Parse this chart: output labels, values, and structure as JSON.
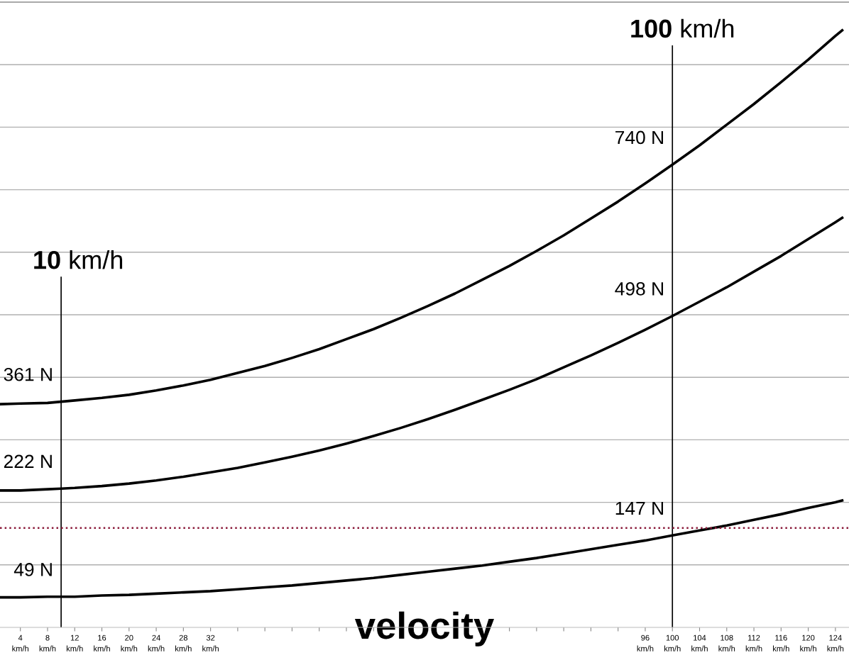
{
  "chart_data": {
    "type": "line",
    "xlabel": "velocity",
    "x": [
      1,
      4,
      8,
      10,
      12,
      16,
      20,
      24,
      28,
      32,
      36,
      40,
      44,
      48,
      52,
      56,
      60,
      64,
      68,
      72,
      76,
      80,
      84,
      88,
      92,
      96,
      100,
      104,
      108,
      112,
      116,
      120,
      124,
      125
    ],
    "series": [
      {
        "color": "#000000",
        "values": [
          357,
          358,
          359,
          361,
          363,
          367,
          372,
          379,
          387,
          396,
          407,
          418,
          431,
          445,
          461,
          477,
          495,
          514,
          534,
          556,
          578,
          602,
          627,
          654,
          681,
          710,
          740,
          771,
          804,
          837,
          872,
          908,
          946,
          955
        ],
        "value_labels": [
          null,
          null,
          null,
          "361 N",
          null,
          null,
          null,
          null,
          null,
          null,
          null,
          null,
          null,
          null,
          null,
          null,
          null,
          null,
          null,
          null,
          null,
          null,
          null,
          null,
          null,
          null,
          "740 N",
          null,
          null,
          null,
          null,
          null,
          null,
          null
        ]
      },
      {
        "color": "#000000",
        "values": [
          219,
          219,
          221,
          222,
          223,
          226,
          230,
          235,
          241,
          248,
          255,
          264,
          273,
          283,
          294,
          306,
          319,
          333,
          348,
          364,
          380,
          397,
          416,
          435,
          455,
          476,
          498,
          521,
          544,
          569,
          594,
          621,
          648,
          655
        ],
        "value_labels": [
          null,
          null,
          null,
          "222 N",
          null,
          null,
          null,
          null,
          null,
          null,
          null,
          null,
          null,
          null,
          null,
          null,
          null,
          null,
          null,
          null,
          null,
          null,
          null,
          null,
          null,
          null,
          "498 N",
          null,
          null,
          null,
          null,
          null,
          null,
          null
        ]
      },
      {
        "color": "#000000",
        "values": [
          48,
          48,
          49,
          49,
          49,
          51,
          52,
          54,
          56,
          58,
          61,
          64,
          67,
          71,
          75,
          79,
          84,
          89,
          94,
          99,
          105,
          111,
          118,
          125,
          132,
          139,
          147,
          155,
          163,
          172,
          181,
          191,
          200,
          203
        ],
        "value_labels": [
          null,
          null,
          null,
          "49 N",
          null,
          null,
          null,
          null,
          null,
          null,
          null,
          null,
          null,
          null,
          null,
          null,
          null,
          null,
          null,
          null,
          null,
          null,
          null,
          null,
          null,
          null,
          "147 N",
          null,
          null,
          null,
          null,
          null,
          null,
          null
        ]
      }
    ],
    "xlim": [
      1,
      126
    ],
    "xticks": [
      {
        "value": 4,
        "label": "4\nkm/h"
      },
      {
        "value": 8,
        "label": "8\nkm/h"
      },
      {
        "value": 12,
        "label": "12\nkm/h"
      },
      {
        "value": 16,
        "label": "16\nkm/h"
      },
      {
        "value": 20,
        "label": "20\nkm/h"
      },
      {
        "value": 24,
        "label": "24\nkm/h"
      },
      {
        "value": 28,
        "label": "28\nkm/h"
      },
      {
        "value": 32,
        "label": "32\nkm/h"
      },
      {
        "value": 36,
        "label": null
      },
      {
        "value": 40,
        "label": null
      },
      {
        "value": 44,
        "label": null
      },
      {
        "value": 48,
        "label": null
      },
      {
        "value": 52,
        "label": null
      },
      {
        "value": 56,
        "label": null
      },
      {
        "value": 60,
        "label": null
      },
      {
        "value": 64,
        "label": null
      },
      {
        "value": 68,
        "label": null
      },
      {
        "value": 72,
        "label": null
      },
      {
        "value": 76,
        "label": null
      },
      {
        "value": 80,
        "label": null
      },
      {
        "value": 84,
        "label": null
      },
      {
        "value": 88,
        "label": null
      },
      {
        "value": 92,
        "label": null
      },
      {
        "value": 96,
        "label": "96\nkm/h"
      },
      {
        "value": 100,
        "label": "100\nkm/h"
      },
      {
        "value": 104,
        "label": "104\nkm/h"
      },
      {
        "value": 108,
        "label": "108\nkm/h"
      },
      {
        "value": 112,
        "label": "112\nkm/h"
      },
      {
        "value": 116,
        "label": "116\nkm/h"
      },
      {
        "value": 120,
        "label": "120\nkm/h"
      },
      {
        "value": 124,
        "label": "124\nkm/h"
      }
    ],
    "ylim": [
      0,
      1000
    ],
    "yticks": [
      {
        "value": 100,
        "label": null
      },
      {
        "value": 200,
        "label": null
      },
      {
        "value": 300,
        "label": null
      },
      {
        "value": 400,
        "label": null
      },
      {
        "value": 500,
        "label": null
      },
      {
        "value": 600,
        "label": null
      },
      {
        "value": 700,
        "label": null
      },
      {
        "value": 800,
        "label": null
      },
      {
        "value": 900,
        "label": null
      }
    ],
    "grid": "y",
    "ref_lines": [
      {
        "axis": "x",
        "value": 10,
        "label": "10 km/h",
        "color": "#000000"
      },
      {
        "axis": "x",
        "value": 100,
        "label": "100 km/h",
        "color": "#000000"
      },
      {
        "axis": "y",
        "value": 159,
        "color": "#8b1a3a",
        "line_style": "dotted"
      }
    ]
  }
}
